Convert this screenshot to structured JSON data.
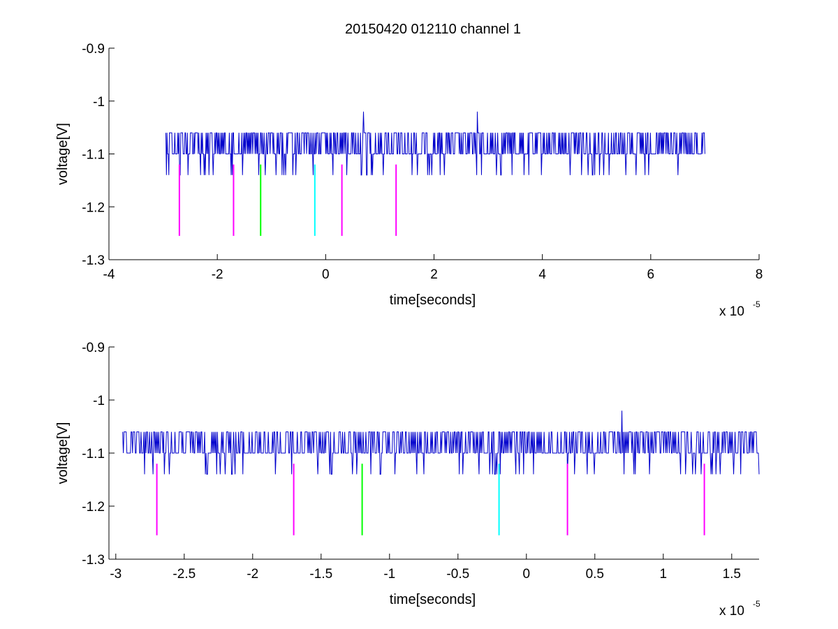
{
  "figure": {
    "title": "20150420 012110 channel 1",
    "background": "#ffffff",
    "signal_color": "#0000cc"
  },
  "chart_data": [
    {
      "type": "line",
      "xlabel": "time[seconds]",
      "ylabel": "voltage[V]",
      "x_multiplier": "x 10",
      "x_exponent": "-5",
      "xlim": [
        -4,
        8
      ],
      "ylim": [
        -1.3,
        -0.9
      ],
      "xticks": [
        -4,
        -2,
        0,
        2,
        4,
        6,
        8
      ],
      "xtick_labels": [
        "-4",
        "-2",
        "0",
        "2",
        "4",
        "6",
        "8"
      ],
      "yticks": [
        -1.3,
        -1.2,
        -1.1,
        -1.0,
        -0.9
      ],
      "ytick_labels": [
        "-1.3",
        "-1.2",
        "-1.1",
        "-1",
        "-0.9"
      ],
      "grid": false,
      "series": [
        {
          "kind": "signal",
          "color": "#0000cc",
          "x_range": [
            -2.95,
            7.0
          ],
          "baseline": -1.1,
          "levels": [
            -1.06,
            -1.1,
            -1.14
          ],
          "peaks": [
            {
              "x": 0.7,
              "y": -1.02
            },
            {
              "x": 2.8,
              "y": -1.02
            }
          ]
        }
      ],
      "markers": [
        {
          "x": -2.7,
          "y_top": -1.12,
          "y_bottom": -1.255,
          "color": "#ff00ff"
        },
        {
          "x": -1.7,
          "y_top": -1.12,
          "y_bottom": -1.255,
          "color": "#ff00ff"
        },
        {
          "x": -1.2,
          "y_top": -1.12,
          "y_bottom": -1.255,
          "color": "#00ff00"
        },
        {
          "x": -0.2,
          "y_top": -1.12,
          "y_bottom": -1.255,
          "color": "#00ffff"
        },
        {
          "x": 0.3,
          "y_top": -1.12,
          "y_bottom": -1.255,
          "color": "#ff00ff"
        },
        {
          "x": 1.3,
          "y_top": -1.12,
          "y_bottom": -1.255,
          "color": "#ff00ff"
        }
      ]
    },
    {
      "type": "line",
      "xlabel": "time[seconds]",
      "ylabel": "voltage[V]",
      "x_multiplier": "x 10",
      "x_exponent": "-5",
      "xlim": [
        -3.05,
        1.7
      ],
      "ylim": [
        -1.3,
        -0.9
      ],
      "xticks": [
        -3,
        -2.5,
        -2,
        -1.5,
        -1,
        -0.5,
        0,
        0.5,
        1,
        1.5
      ],
      "xtick_labels": [
        "-3",
        "-2.5",
        "-2",
        "-1.5",
        "-1",
        "-0.5",
        "0",
        "0.5",
        "1",
        "1.5"
      ],
      "yticks": [
        -1.3,
        -1.2,
        -1.1,
        -1.0,
        -0.9
      ],
      "ytick_labels": [
        "-1.3",
        "-1.2",
        "-1.1",
        "-1",
        "-0.9"
      ],
      "grid": false,
      "series": [
        {
          "kind": "signal",
          "color": "#0000cc",
          "x_range": [
            -2.95,
            1.7
          ],
          "baseline": -1.1,
          "levels": [
            -1.06,
            -1.1,
            -1.14
          ],
          "peaks": [
            {
              "x": 0.7,
              "y": -1.02
            }
          ]
        }
      ],
      "markers": [
        {
          "x": -2.7,
          "y_top": -1.12,
          "y_bottom": -1.255,
          "color": "#ff00ff"
        },
        {
          "x": -1.7,
          "y_top": -1.12,
          "y_bottom": -1.255,
          "color": "#ff00ff"
        },
        {
          "x": -1.2,
          "y_top": -1.12,
          "y_bottom": -1.255,
          "color": "#00ff00"
        },
        {
          "x": -0.2,
          "y_top": -1.12,
          "y_bottom": -1.255,
          "color": "#00ffff"
        },
        {
          "x": 0.3,
          "y_top": -1.12,
          "y_bottom": -1.255,
          "color": "#ff00ff"
        },
        {
          "x": 1.3,
          "y_top": -1.12,
          "y_bottom": -1.255,
          "color": "#ff00ff"
        }
      ]
    }
  ]
}
